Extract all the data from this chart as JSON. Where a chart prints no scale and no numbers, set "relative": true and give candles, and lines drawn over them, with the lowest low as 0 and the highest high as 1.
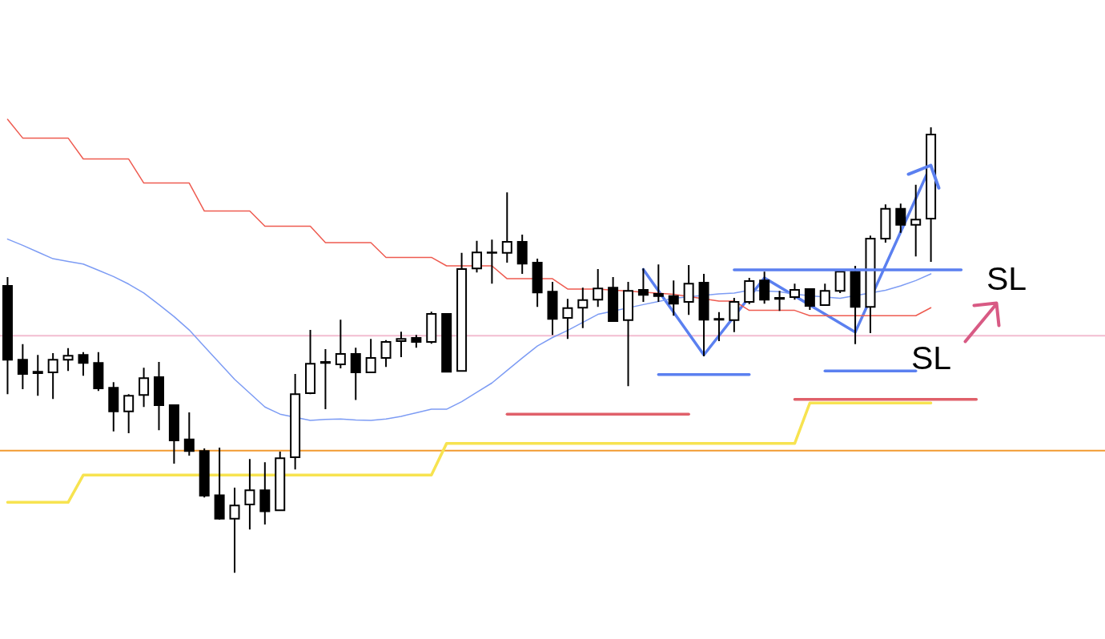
{
  "chart_data": {
    "type": "candlestick",
    "relative": true,
    "color": "#000000",
    "categories": [
      null,
      null,
      null,
      null,
      null,
      null,
      null,
      null,
      null,
      null,
      null,
      null,
      null,
      null,
      null,
      null,
      null,
      null,
      null,
      null,
      null,
      null,
      null,
      null,
      null,
      null,
      null,
      null,
      null,
      null,
      null,
      null,
      null,
      null,
      null,
      null,
      null,
      null,
      null,
      null,
      null,
      null,
      null,
      null,
      null,
      null,
      null,
      null,
      null,
      null,
      null,
      null,
      null,
      null,
      null,
      null,
      null,
      null,
      null,
      null,
      null,
      null,
      null,
      null,
      null,
      null,
      null,
      null,
      null,
      null,
      null,
      null,
      null
    ],
    "ohlc": [
      [
        0.644,
        0.664,
        0.401,
        0.478
      ],
      [
        0.478,
        0.513,
        0.412,
        0.446
      ],
      [
        0.451,
        0.489,
        0.397,
        0.448
      ],
      [
        0.45,
        0.493,
        0.39,
        0.478
      ],
      [
        0.478,
        0.504,
        0.453,
        0.487
      ],
      [
        0.489,
        0.495,
        0.442,
        0.471
      ],
      [
        0.471,
        0.495,
        0.408,
        0.414
      ],
      [
        0.415,
        0.428,
        0.317,
        0.362
      ],
      [
        0.362,
        0.401,
        0.313,
        0.397
      ],
      [
        0.399,
        0.46,
        0.372,
        0.437
      ],
      [
        0.439,
        0.473,
        0.32,
        0.376
      ],
      [
        0.376,
        0.376,
        0.245,
        0.297
      ],
      [
        0.299,
        0.36,
        0.263,
        0.273
      ],
      [
        0.273,
        0.279,
        0.169,
        0.173
      ],
      [
        0.174,
        0.281,
        0.119,
        0.121
      ],
      [
        0.121,
        0.191,
        0,
        0.151
      ],
      [
        0.153,
        0.255,
        0.097,
        0.185
      ],
      [
        0.185,
        0.248,
        0.108,
        0.138
      ],
      [
        0.14,
        0.272,
        0.14,
        0.257
      ],
      [
        0.259,
        0.446,
        0.232,
        0.401
      ],
      [
        0.403,
        0.545,
        0.401,
        0.469
      ],
      [
        0.471,
        0.502,
        0.367,
        0.473
      ],
      [
        0.468,
        0.568,
        0.459,
        0.491
      ],
      [
        0.491,
        0.505,
        0.388,
        0.45
      ],
      [
        0.45,
        0.525,
        0.45,
        0.482
      ],
      [
        0.482,
        0.522,
        0.462,
        0.518
      ],
      [
        0.52,
        0.541,
        0.484,
        0.525
      ],
      [
        0.527,
        0.534,
        0.505,
        0.518
      ],
      [
        0.518,
        0.586,
        0.514,
        0.581
      ],
      [
        0.581,
        0.581,
        0.45,
        0.451
      ],
      [
        0.453,
        0.718,
        0.453,
        0.682
      ],
      [
        0.683,
        0.745,
        0.674,
        0.719
      ],
      [
        0.718,
        0.748,
        0.649,
        0.719
      ],
      [
        0.718,
        0.854,
        0.696,
        0.743
      ],
      [
        0.743,
        0.759,
        0.671,
        0.694
      ],
      [
        0.696,
        0.705,
        0.597,
        0.629
      ],
      [
        0.631,
        0.653,
        0.534,
        0.57
      ],
      [
        0.572,
        0.615,
        0.525,
        0.594
      ],
      [
        0.595,
        0.64,
        0.549,
        0.612
      ],
      [
        0.613,
        0.682,
        0.597,
        0.638
      ],
      [
        0.64,
        0.664,
        0.563,
        0.565
      ],
      [
        0.567,
        0.653,
        0.419,
        0.633
      ],
      [
        0.635,
        0.683,
        0.608,
        0.624
      ],
      [
        0.626,
        0.692,
        0.608,
        0.621
      ],
      [
        0.621,
        0.656,
        0.577,
        0.604
      ],
      [
        0.608,
        0.691,
        0.579,
        0.649
      ],
      [
        0.651,
        0.671,
        0.486,
        0.568
      ],
      [
        0.568,
        0.585,
        0.52,
        0.57
      ],
      [
        0.567,
        0.617,
        0.54,
        0.608
      ],
      [
        0.608,
        0.662,
        0.603,
        0.655
      ],
      [
        0.656,
        0.676,
        0.604,
        0.613
      ],
      [
        0.617,
        0.633,
        0.588,
        0.615
      ],
      [
        0.619,
        0.649,
        0.613,
        0.635
      ],
      [
        0.637,
        0.637,
        0.59,
        0.599
      ],
      [
        0.601,
        0.649,
        0.601,
        0.633
      ],
      [
        0.633,
        0.676,
        0.628,
        0.676
      ],
      [
        0.676,
        0.689,
        0.513,
        0.597
      ],
      [
        0.597,
        0.757,
        0.538,
        0.75
      ],
      [
        0.75,
        0.827,
        0.741,
        0.817
      ],
      [
        0.817,
        0.829,
        0.763,
        0.781
      ],
      [
        0.781,
        0.871,
        0.71,
        0.793
      ],
      [
        0.795,
        1,
        0.698,
        0.984
      ],
      null,
      null,
      null,
      null,
      null,
      null,
      null,
      null,
      null,
      null,
      null
    ],
    "series": [
      {
        "type": "line",
        "color": "#ee5b50",
        "values": [
          1.018,
          0.976,
          0.976,
          0.976,
          0.976,
          0.929,
          0.929,
          0.929,
          0.929,
          0.875,
          0.875,
          0.875,
          0.875,
          0.812,
          0.812,
          0.812,
          0.812,
          0.778,
          0.778,
          0.778,
          0.778,
          0.741,
          0.741,
          0.741,
          0.741,
          0.708,
          0.708,
          0.708,
          0.708,
          0.689,
          0.689,
          null,
          0.689,
          0.66,
          0.66,
          null,
          0.66,
          0.637,
          0.637,
          0.637,
          null,
          null,
          null,
          null,
          0.625,
          null,
          null,
          0.61,
          0.61,
          0.589,
          0.589,
          0.589,
          0.589,
          0.577,
          0.577,
          0.577,
          0.577,
          0.577,
          0.577,
          0.577,
          0.577,
          0.595,
          null,
          null,
          null,
          null,
          null,
          null,
          null,
          null,
          null,
          null,
          null
        ]
      },
      {
        "type": "line",
        "color": "#7d9cf4",
        "values": [
          0.749,
          0.735,
          0.72,
          0.705,
          0.699,
          0.693,
          0.679,
          0.665,
          0.648,
          0.628,
          0.602,
          0.575,
          0.545,
          0.508,
          0.471,
          0.434,
          0.403,
          0.372,
          0.356,
          null,
          0.342,
          0.344,
          0.345,
          0.343,
          0.342,
          0.345,
          0.351,
          0.359,
          0.367,
          0.367,
          0.384,
          0.405,
          0.426,
          0.454,
          0.482,
          0.509,
          0.528,
          0.544,
          0.562,
          0.58,
          null,
          null,
          0.602,
          0.609,
          0.616,
          null,
          null,
          0.626,
          0.628,
          0.634,
          null,
          0.631,
          0.625,
          null,
          null,
          0.616,
          null,
          null,
          0.634,
          0.644,
          0.656,
          0.671,
          null,
          null,
          null,
          null,
          null,
          null,
          null,
          null,
          null,
          null,
          null
        ]
      },
      {
        "type": "line",
        "color": "#f7e350",
        "values": [
          0.158,
          0.158,
          0.158,
          0.158,
          0.158,
          0.219,
          0.219,
          0.219,
          0.219,
          0.219,
          0.219,
          0.219,
          0.219,
          null,
          0.219,
          0.219,
          0.219,
          0.219,
          null,
          0.219,
          0.219,
          0.219,
          0.219,
          0.219,
          0.219,
          0.219,
          0.219,
          0.219,
          0.219,
          0.29,
          0.29,
          0.29,
          0.29,
          0.29,
          0.29,
          0.29,
          0.29,
          0.29,
          0.29,
          0.29,
          0.29,
          0.29,
          0.29,
          0.29,
          0.29,
          0.29,
          0.29,
          0.29,
          0.29,
          0.29,
          0.29,
          0.29,
          0.29,
          0.381,
          0.381,
          0.381,
          0.381,
          0.381,
          0.381,
          0.381,
          0.381,
          0.381,
          null,
          null,
          null,
          null,
          null,
          null,
          null,
          null,
          null,
          null,
          null
        ]
      },
      {
        "type": "line",
        "color": "#5b80f0",
        "values": [
          null,
          null,
          null,
          null,
          null,
          null,
          null,
          null,
          null,
          null,
          null,
          null,
          null,
          null,
          null,
          null,
          null,
          null,
          null,
          null,
          null,
          null,
          null,
          null,
          null,
          null,
          null,
          null,
          null,
          null,
          null,
          null,
          null,
          null,
          null,
          null,
          null,
          null,
          null,
          null,
          null,
          null,
          0.681,
          null,
          null,
          null,
          0.489,
          null,
          null,
          null,
          0.662,
          null,
          null,
          null,
          null,
          null,
          0.54,
          null,
          null,
          null,
          null,
          0.915,
          null,
          null,
          null,
          null,
          null,
          null,
          null,
          null,
          null,
          null,
          null
        ]
      },
      {
        "type": "line",
        "color": "#e0606a",
        "values": [
          null,
          null,
          null,
          null,
          null,
          null,
          null,
          null,
          null,
          null,
          null,
          null,
          null,
          null,
          null,
          null,
          null,
          null,
          null,
          null,
          null,
          null,
          null,
          null,
          null,
          null,
          null,
          null,
          null,
          null,
          null,
          null,
          null,
          0.356,
          0.356,
          0.356,
          0.356,
          0.356,
          0.356,
          0.356,
          0.356,
          0.356,
          0.356,
          0.356,
          0.356,
          0.356,
          null,
          null,
          null,
          null,
          null,
          null,
          null,
          null,
          null,
          null,
          null,
          null,
          null,
          null,
          null,
          null,
          null,
          null,
          null,
          null,
          null,
          null,
          null,
          null,
          null,
          null,
          null
        ]
      },
      {
        "type": "line",
        "color": "#e0606a",
        "values": [
          null,
          null,
          null,
          null,
          null,
          null,
          null,
          null,
          null,
          null,
          null,
          null,
          null,
          null,
          null,
          null,
          null,
          null,
          null,
          null,
          null,
          null,
          null,
          null,
          null,
          null,
          null,
          null,
          null,
          null,
          null,
          null,
          null,
          null,
          null,
          null,
          null,
          null,
          null,
          null,
          null,
          null,
          null,
          null,
          null,
          null,
          null,
          null,
          null,
          null,
          null,
          null,
          0.389,
          0.389,
          0.389,
          0.389,
          0.389,
          0.389,
          0.389,
          0.389,
          0.389,
          0.389,
          0.389,
          0.389,
          0.389,
          null,
          null,
          null,
          null,
          null,
          null,
          null,
          null
        ]
      },
      {
        "type": "line",
        "color": "#5b80f0",
        "values": [
          null,
          null,
          null,
          null,
          null,
          null,
          null,
          null,
          null,
          null,
          null,
          null,
          null,
          null,
          null,
          null,
          null,
          null,
          null,
          null,
          null,
          null,
          null,
          null,
          null,
          null,
          null,
          null,
          null,
          null,
          null,
          null,
          null,
          null,
          null,
          null,
          null,
          null,
          null,
          null,
          null,
          null,
          null,
          0.445,
          0.445,
          0.445,
          0.445,
          0.445,
          0.445,
          0.445,
          null,
          null,
          null,
          null,
          null,
          null,
          null,
          null,
          null,
          null,
          null,
          null,
          null,
          null,
          null,
          null,
          null,
          null,
          null,
          null,
          null,
          null,
          null
        ]
      },
      {
        "type": "line",
        "color": "#5b80f0",
        "values": [
          null,
          null,
          null,
          null,
          null,
          null,
          null,
          null,
          null,
          null,
          null,
          null,
          null,
          null,
          null,
          null,
          null,
          null,
          null,
          null,
          null,
          null,
          null,
          null,
          null,
          null,
          null,
          null,
          null,
          null,
          null,
          null,
          null,
          null,
          null,
          null,
          null,
          null,
          null,
          null,
          null,
          null,
          null,
          null,
          null,
          null,
          null,
          null,
          null,
          null,
          null,
          null,
          null,
          null,
          0.453,
          0.453,
          0.453,
          0.453,
          0.453,
          0.453,
          0.453,
          null,
          null,
          null,
          null,
          null,
          null,
          null,
          null,
          null,
          null,
          null,
          null
        ]
      },
      {
        "type": "line",
        "color": "#5b80f0",
        "values": [
          null,
          null,
          null,
          null,
          null,
          null,
          null,
          null,
          null,
          null,
          null,
          null,
          null,
          null,
          null,
          null,
          null,
          null,
          null,
          null,
          null,
          null,
          null,
          null,
          null,
          null,
          null,
          null,
          null,
          null,
          null,
          null,
          null,
          null,
          null,
          null,
          null,
          null,
          null,
          null,
          null,
          null,
          null,
          null,
          null,
          null,
          null,
          null,
          0.68,
          0.68,
          0.68,
          0.68,
          0.68,
          0.68,
          0.68,
          0.68,
          0.68,
          0.68,
          0.68,
          0.68,
          0.68,
          0.68,
          0.68,
          0.68,
          null,
          null,
          null,
          null,
          null,
          null,
          null,
          null,
          null
        ]
      }
    ],
    "ref_lines": [
      {
        "axis": "y",
        "value": 0.532,
        "color": "#f2bdd0"
      },
      {
        "axis": "y",
        "value": 0.274,
        "color": "#f29a30"
      }
    ],
    "annotations": [
      "SL",
      "SL"
    ]
  }
}
